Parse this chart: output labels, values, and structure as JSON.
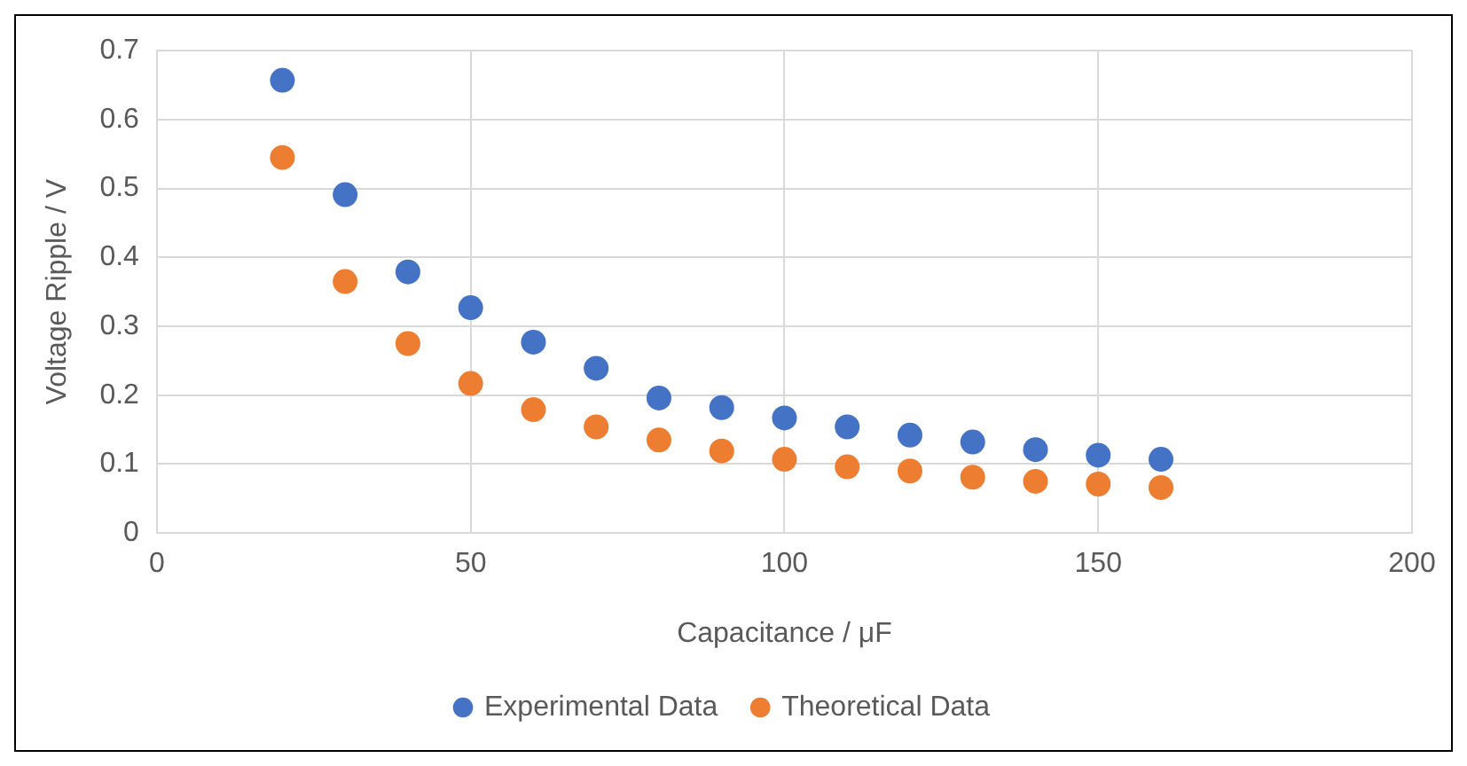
{
  "chart_data": {
    "type": "scatter",
    "xlabel": "Capacitance / μF",
    "ylabel": "Voltage Ripple / V",
    "x": [
      20,
      30,
      40,
      50,
      60,
      70,
      80,
      90,
      100,
      110,
      120,
      130,
      140,
      150,
      160
    ],
    "series": [
      {
        "name": "Experimental Data",
        "color": "#4472c4",
        "values": [
          0.657,
          0.491,
          0.379,
          0.327,
          0.277,
          0.239,
          0.196,
          0.182,
          0.167,
          0.154,
          0.142,
          0.132,
          0.121,
          0.113,
          0.107
        ]
      },
      {
        "name": "Theoretical Data",
        "color": "#ed7d31",
        "values": [
          0.545,
          0.365,
          0.275,
          0.217,
          0.179,
          0.154,
          0.135,
          0.119,
          0.107,
          0.096,
          0.09,
          0.081,
          0.075,
          0.071,
          0.066
        ]
      }
    ],
    "xlim": [
      0,
      200
    ],
    "xticks": [
      0,
      50,
      100,
      150,
      200
    ],
    "ylim": [
      0,
      0.7
    ],
    "yticks": [
      0,
      0.1,
      0.2,
      0.3,
      0.4,
      0.5,
      0.6,
      0.7
    ],
    "grid": true,
    "legend": "bottom",
    "marker": "circle"
  }
}
